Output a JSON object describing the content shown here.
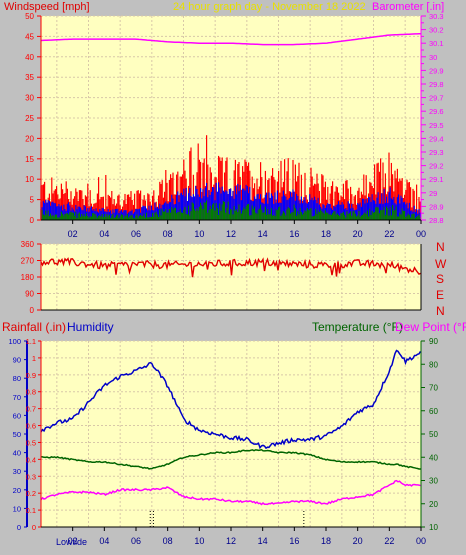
{
  "header": {
    "left_title": "Windspeed [mph]",
    "center_title": "24 hour graph day - November 18 2022",
    "right_title": "Barometer [.in]"
  },
  "colors": {
    "background": "#c0c0c0",
    "plot_bg": "#ffffc0",
    "grid": "#d8c8a8",
    "axis": "#ff0000",
    "wind_gust": "#ff0000",
    "wind_avg": "#0000ff",
    "wind_low": "#008000",
    "barometer": "#ff00ff",
    "direction": "#e00000",
    "humidity": "#0000c8",
    "temperature": "#006400",
    "dewpoint": "#ff00ff",
    "rain": "#000000"
  },
  "middle": {
    "right_labels": [
      "N",
      "W",
      "S",
      "E",
      "N"
    ]
  },
  "bottom_header": {
    "rain_label": "Rainfall (.in)",
    "humidity_label": "Humidity",
    "temp_label": "Temperature (°F)",
    "dew_label": "Dew Point (°F)"
  },
  "footer": {
    "lowtide_label": "Lowtide"
  },
  "chart_data": [
    {
      "type": "line",
      "name": "wind-barometer",
      "xlabel": "",
      "x_ticks": [
        "02",
        "04",
        "06",
        "08",
        "10",
        "12",
        "14",
        "16",
        "18",
        "20",
        "22",
        "00"
      ],
      "ylabel": "Windspeed [mph]",
      "ylim": [
        0,
        50
      ],
      "y_ticks": [
        0,
        5,
        10,
        15,
        20,
        25,
        30,
        35,
        40,
        45,
        50
      ],
      "y2label": "Barometer [.in]",
      "y2lim": [
        28.8,
        30.3
      ],
      "y2_ticks": [
        "28.8",
        "28.9",
        "29",
        "29.1",
        "29.2",
        "29.3",
        "29.4",
        "29.5",
        "29.6",
        "29.7",
        "29.8",
        "29.9",
        "30",
        "30.1",
        "30.2",
        "30.3"
      ],
      "hours": [
        0,
        2,
        4,
        6,
        8,
        10,
        12,
        14,
        16,
        18,
        20,
        22,
        24
      ],
      "series": [
        {
          "name": "Windspeed",
          "values": [
            4.5,
            3.5,
            2.5,
            2.5,
            5,
            8,
            8,
            6.5,
            6.5,
            4,
            4,
            7,
            2
          ]
        },
        {
          "name": "Windgust",
          "values": [
            10,
            9,
            7,
            6.5,
            10,
            15,
            14,
            14,
            14,
            10,
            9,
            16,
            5
          ]
        },
        {
          "name": "Barometer",
          "values": [
            30.12,
            30.13,
            30.13,
            30.13,
            30.11,
            30.1,
            30.1,
            30.09,
            30.09,
            30.1,
            30.13,
            30.16,
            30.17
          ]
        }
      ]
    },
    {
      "type": "line",
      "name": "wind-direction",
      "ylim": [
        0,
        360
      ],
      "y_ticks": [
        0,
        90,
        180,
        270,
        360
      ],
      "hours": [
        0,
        2,
        4,
        6,
        8,
        10,
        12,
        14,
        16,
        18,
        20,
        22,
        24
      ],
      "series": [
        {
          "name": "Direction",
          "values": [
            265,
            260,
            240,
            250,
            245,
            250,
            255,
            260,
            250,
            245,
            255,
            245,
            210
          ]
        }
      ]
    },
    {
      "type": "line",
      "name": "humidity-temperature",
      "x_ticks": [
        "02",
        "04",
        "06",
        "08",
        "10",
        "12",
        "14",
        "16",
        "18",
        "20",
        "22",
        "00"
      ],
      "y1lim": [
        0,
        100
      ],
      "y1_ticks": [
        0,
        10,
        20,
        30,
        40,
        50,
        60,
        70,
        80,
        90,
        100
      ],
      "rain_lim": [
        0,
        1.1
      ],
      "rain_ticks": [
        "0",
        "0.1",
        "0.2",
        "0.3",
        "0.4",
        "0.5",
        "0.6",
        "0.7",
        "0.8",
        "0.9",
        "1",
        "1.1"
      ],
      "y2lim": [
        10,
        90
      ],
      "y2_ticks": [
        10,
        20,
        30,
        40,
        50,
        60,
        70,
        80,
        90
      ],
      "hours": [
        0,
        1,
        2,
        3,
        4,
        5,
        6,
        7,
        8,
        9,
        10,
        11,
        12,
        13,
        14,
        15,
        16,
        17,
        18,
        19,
        20,
        21,
        22,
        22.5,
        23,
        24
      ],
      "series": [
        {
          "name": "Humidity",
          "values": [
            52,
            56,
            58,
            67,
            76,
            81,
            84,
            88,
            76,
            58,
            52,
            50,
            48,
            47,
            43,
            45,
            47,
            47,
            49,
            54,
            62,
            66,
            84,
            96,
            89,
            94
          ]
        },
        {
          "name": "Temperature",
          "values": [
            40,
            40,
            39,
            38,
            38,
            37,
            36,
            35,
            37,
            40,
            41,
            42,
            42,
            43,
            43,
            42,
            42,
            41,
            39,
            38,
            38,
            38,
            37,
            37,
            36,
            35
          ]
        },
        {
          "name": "Dew Point",
          "values": [
            22,
            24,
            25,
            25,
            24,
            26,
            26,
            26,
            27,
            23,
            22,
            22,
            21,
            21,
            20,
            20,
            21,
            21,
            20,
            22,
            23,
            24,
            28,
            30,
            28,
            28
          ]
        }
      ],
      "rain_marks_hours": [
        6.9,
        7.1,
        16.6
      ]
    }
  ]
}
